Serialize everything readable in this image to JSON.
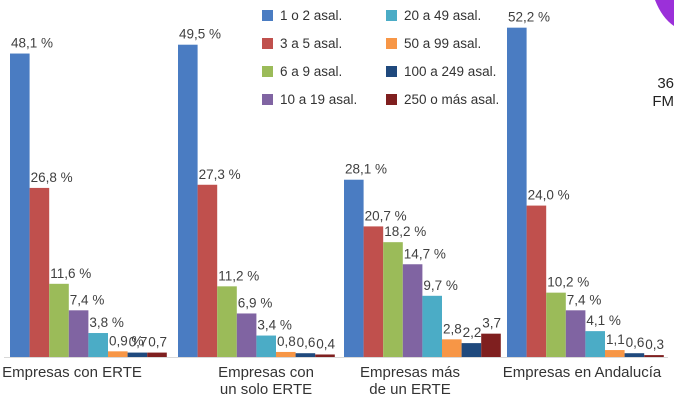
{
  "chart_data": {
    "type": "bar",
    "ylim": [
      0,
      55
    ],
    "categories": [
      [
        "Empresas con ERTE"
      ],
      [
        "Empresas con",
        "un solo ERTE"
      ],
      [
        "Empresas más",
        "de un ERTE"
      ],
      [
        "Empresas en Andalucía"
      ]
    ],
    "series": [
      {
        "name": "1 o 2 asal.",
        "color": "#4a7cc2",
        "values": [
          48.1,
          49.5,
          28.1,
          52.2
        ],
        "labels": [
          "48,1 %",
          "49,5 %",
          "28,1 %",
          "52,2 %"
        ]
      },
      {
        "name": "3 a 5 asal.",
        "color": "#c0504d",
        "values": [
          26.8,
          27.3,
          20.7,
          24.0
        ],
        "labels": [
          "26,8 %",
          "27,3 %",
          "20,7 %",
          "24,0 %"
        ]
      },
      {
        "name": "6 a 9 asal.",
        "color": "#9bbb59",
        "values": [
          11.6,
          11.2,
          18.2,
          10.2
        ],
        "labels": [
          "11,6 %",
          "11,2 %",
          "18,2 %",
          "10,2 %"
        ]
      },
      {
        "name": "10 a 19 asal.",
        "color": "#8064a2",
        "values": [
          7.4,
          6.9,
          14.7,
          7.4
        ],
        "labels": [
          "7,4 %",
          "6,9 %",
          "14,7 %",
          "7,4 %"
        ]
      },
      {
        "name": "20 a 49 asal.",
        "color": "#4bacc6",
        "values": [
          3.8,
          3.4,
          9.7,
          4.1
        ],
        "labels": [
          "3,8 %",
          "3,4 %",
          "9,7 %",
          "4,1 %"
        ]
      },
      {
        "name": "50 a 99 asal.",
        "color": "#f79646",
        "values": [
          0.9,
          0.8,
          2.8,
          1.1
        ],
        "labels": [
          "0,9 %",
          "0,8",
          "2,8",
          "1,1"
        ]
      },
      {
        "name": "100 a 249 asal.",
        "color": "#1f497d",
        "values": [
          0.7,
          0.6,
          2.2,
          0.6
        ],
        "labels": [
          "0,7",
          "0,6",
          "2,2",
          "0,6"
        ]
      },
      {
        "name": "250 o más asal.",
        "color": "#7f1f1f",
        "values": [
          0.7,
          0.4,
          3.7,
          0.3
        ],
        "labels": [
          "0,7",
          "0,4",
          "3,7",
          "0,3"
        ]
      }
    ]
  },
  "side_text": [
    "36",
    "FM"
  ],
  "colors": {
    "corner_accent": "#9b30d9"
  }
}
